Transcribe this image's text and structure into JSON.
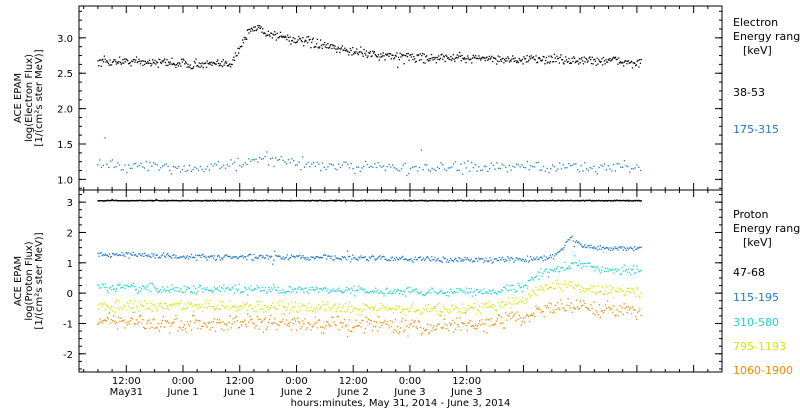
{
  "chart_data": [
    {
      "type": "scatter",
      "panel": "electron",
      "ylabel_lines": [
        "ACE EPAM",
        "log(Electron Flux)",
        "[1/(cm²s ster MeV)]"
      ],
      "legend_title_lines": [
        "Electron",
        "Energy ranges",
        "[keV]"
      ],
      "ylim": [
        0.85,
        3.45
      ],
      "yticks": [
        1.0,
        1.5,
        2.0,
        2.5,
        3.0
      ],
      "ytick_labels": [
        "1.0",
        "1.5",
        "2.0",
        "2.5",
        "3.0"
      ],
      "series": [
        {
          "name": "38-53",
          "color": "#000000",
          "x": [
            0,
            5,
            10,
            15,
            20,
            25,
            28,
            30,
            32,
            34,
            36,
            40,
            45,
            50,
            55,
            60,
            65,
            70,
            75,
            80,
            85,
            90,
            95,
            100,
            105,
            110,
            115
          ],
          "y": [
            2.65,
            2.67,
            2.66,
            2.65,
            2.63,
            2.62,
            2.64,
            2.85,
            3.1,
            3.15,
            3.06,
            3.0,
            2.93,
            2.85,
            2.8,
            2.75,
            2.73,
            2.72,
            2.71,
            2.72,
            2.7,
            2.69,
            2.7,
            2.68,
            2.68,
            2.67,
            2.64
          ]
        },
        {
          "name": "175-315",
          "color": "#1f78c8",
          "x": [
            0,
            10,
            20,
            30,
            35,
            40,
            50,
            60,
            70,
            80,
            90,
            100,
            110,
            115
          ],
          "y": [
            1.2,
            1.17,
            1.16,
            1.2,
            1.28,
            1.24,
            1.18,
            1.17,
            1.16,
            1.16,
            1.17,
            1.17,
            1.18,
            1.16
          ]
        }
      ]
    },
    {
      "type": "scatter",
      "panel": "proton",
      "ylabel_lines": [
        "ACE EPAM",
        "log(Proton Flux)",
        "[1/(cm²s ster MeV)]"
      ],
      "legend_title_lines": [
        "Proton",
        "Energy ranges",
        "[keV]"
      ],
      "ylim": [
        -2.6,
        3.4
      ],
      "yticks": [
        -2,
        -1,
        0,
        1,
        2,
        3
      ],
      "ytick_labels": [
        "-2",
        "-1",
        "0",
        "1",
        "2",
        "3"
      ],
      "series": [
        {
          "name": "47-68",
          "color": "#000000",
          "x": [
            0,
            20,
            40,
            60,
            80,
            100,
            115
          ],
          "y": [
            3.05,
            3.05,
            3.05,
            3.05,
            3.05,
            3.05,
            3.05
          ]
        },
        {
          "name": "115-195",
          "color": "#1f78c8",
          "x": [
            0,
            10,
            20,
            30,
            40,
            50,
            60,
            70,
            80,
            88,
            92,
            95,
            98,
            100,
            102,
            105,
            110,
            115
          ],
          "y": [
            1.3,
            1.25,
            1.2,
            1.18,
            1.18,
            1.17,
            1.15,
            1.12,
            1.1,
            1.1,
            1.12,
            1.15,
            1.4,
            1.85,
            1.6,
            1.5,
            1.45,
            1.5
          ]
        },
        {
          "name": "310-580",
          "color": "#22d3d3",
          "x": [
            0,
            10,
            20,
            30,
            40,
            50,
            60,
            70,
            80,
            85,
            90,
            93,
            96,
            100,
            103,
            106,
            110,
            115
          ],
          "y": [
            0.2,
            0.15,
            0.12,
            0.12,
            0.12,
            0.1,
            0.05,
            0.05,
            0.05,
            0.1,
            0.2,
            0.6,
            0.75,
            0.9,
            1.0,
            0.8,
            0.75,
            0.75
          ]
        },
        {
          "name": "795-1193",
          "color": "#d4e600",
          "x": [
            0,
            10,
            20,
            30,
            40,
            50,
            60,
            70,
            80,
            85,
            90,
            93,
            96,
            100,
            103,
            106,
            110,
            115
          ],
          "y": [
            -0.4,
            -0.45,
            -0.45,
            -0.45,
            -0.45,
            -0.5,
            -0.5,
            -0.55,
            -0.5,
            -0.4,
            -0.2,
            0.1,
            0.25,
            0.3,
            0.2,
            0.1,
            0.05,
            0.05
          ]
        },
        {
          "name": "1060-1900",
          "color": "#f08a00",
          "x": [
            0,
            10,
            20,
            30,
            40,
            50,
            60,
            70,
            80,
            85,
            90,
            93,
            96,
            100,
            103,
            106,
            110,
            115
          ],
          "y": [
            -0.9,
            -1.0,
            -1.0,
            -1.0,
            -1.0,
            -1.05,
            -1.05,
            -1.1,
            -1.0,
            -0.9,
            -0.8,
            -0.6,
            -0.45,
            -0.4,
            -0.45,
            -0.55,
            -0.55,
            -0.6
          ]
        }
      ]
    }
  ],
  "x_axis": {
    "xlim": [
      -4,
      132
    ],
    "major_ticks": [
      6,
      18,
      30,
      42,
      54,
      66,
      78,
      90,
      102,
      114,
      126
    ],
    "tick_labels": [
      {
        "x": 6,
        "line1": "12:00",
        "line2": "May31"
      },
      {
        "x": 18,
        "line1": "0:00",
        "line2": "June 1"
      },
      {
        "x": 30,
        "line1": "12:00",
        "line2": "June 1"
      },
      {
        "x": 42,
        "line1": "0:00",
        "line2": "June 2"
      },
      {
        "x": 54,
        "line1": "12:00",
        "line2": "June 2"
      },
      {
        "x": 66,
        "line1": "0:00",
        "line2": "June 3"
      },
      {
        "x": 78,
        "line1": "12:00",
        "line2": "June 3"
      }
    ],
    "title": "hours:minutes, May 31, 2014 - June  3, 2014"
  }
}
